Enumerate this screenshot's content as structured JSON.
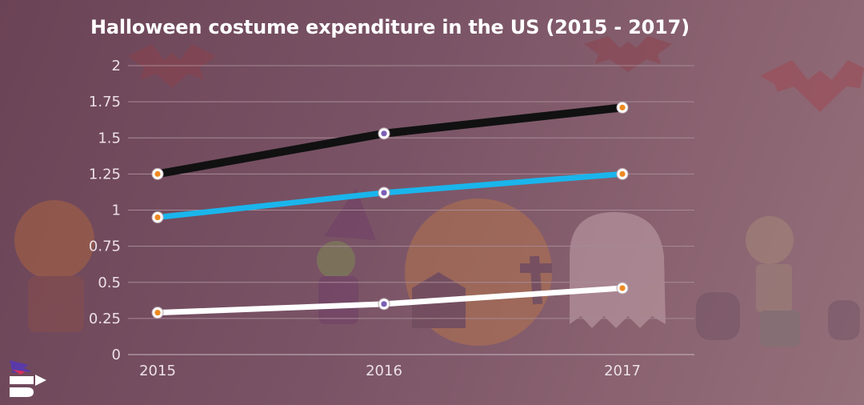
{
  "chart_data": {
    "type": "line",
    "title": "Halloween costume expenditure in the US (2015 - 2017)",
    "x": [
      "2015",
      "2016",
      "2017"
    ],
    "xlabel": "",
    "ylabel": "",
    "ylim": [
      0,
      2
    ],
    "yticks": [
      "0",
      "0.25",
      "0.5",
      "0.75",
      "1",
      "1.25",
      "1.5",
      "1.75",
      "2"
    ],
    "grid": true,
    "series": [
      {
        "color": "#111111",
        "values": [
          1.25,
          1.53,
          1.71
        ]
      },
      {
        "color": "#1ab5ec",
        "values": [
          0.95,
          1.12,
          1.25
        ]
      },
      {
        "color": "#ffffff",
        "values": [
          0.29,
          0.35,
          0.46
        ]
      }
    ],
    "marker_colors": [
      "#ee8a22",
      "#7b5fb5"
    ]
  }
}
